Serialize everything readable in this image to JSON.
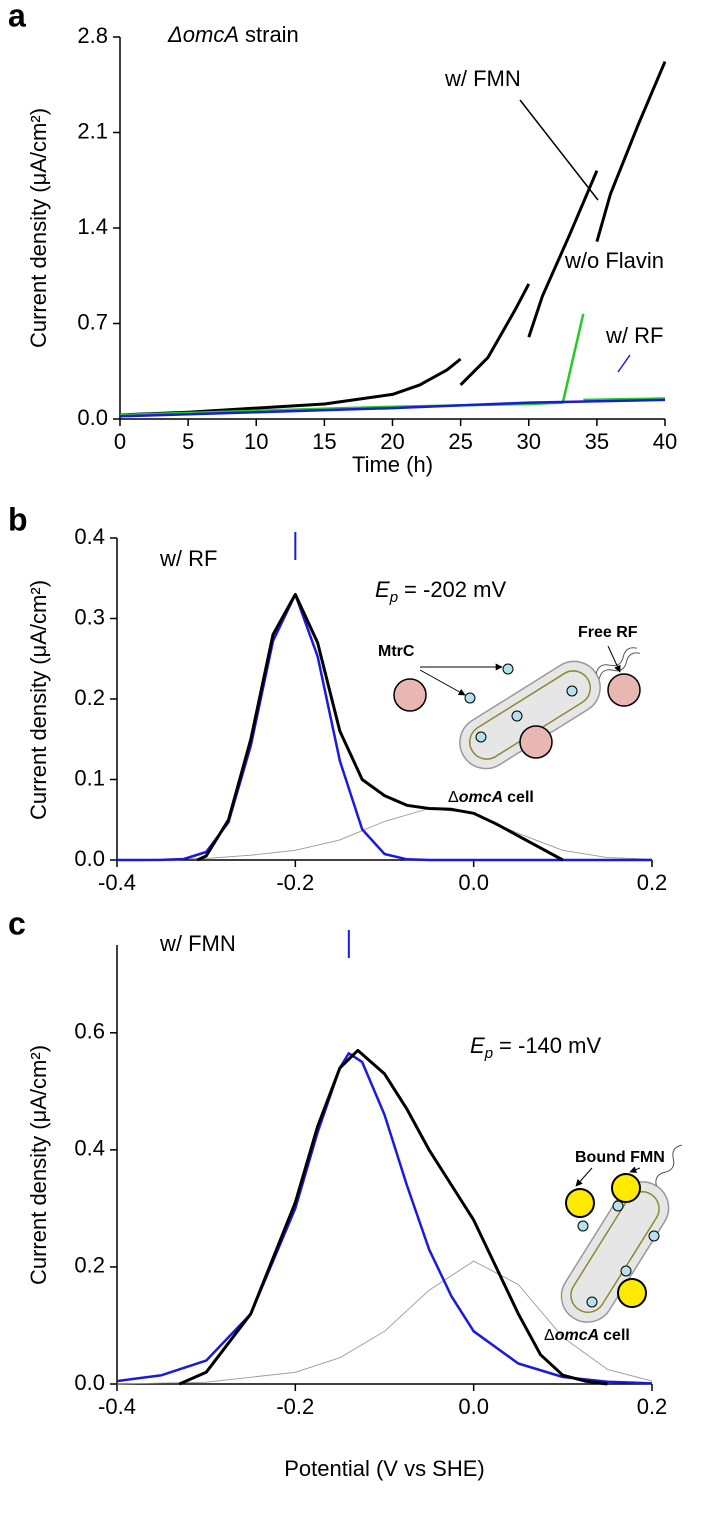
{
  "chart_data": [
    {
      "type": "line",
      "panel_label": "a",
      "strain_label": {
        "italic": "ΔomcA",
        "text": "strain"
      },
      "xlabel": "Time (h)",
      "ylabel": "Current density (μA/cm²)",
      "xlim": [
        0,
        40
      ],
      "xticks": [
        0,
        5,
        10,
        15,
        20,
        25,
        30,
        35,
        40
      ],
      "ylim": [
        0,
        2.8
      ],
      "yticks": [
        {
          "value": 0,
          "label": "0.0"
        },
        0.7,
        1.4,
        2.1,
        2.8
      ],
      "series": [
        {
          "name": "w/ FMN",
          "color": "#000000",
          "x": [
            0,
            5,
            10,
            15,
            20,
            22,
            24,
            25,
            null,
            25,
            27,
            29,
            30,
            null,
            30,
            31,
            33,
            35,
            null,
            35,
            36,
            38,
            40
          ],
          "values": [
            0.03,
            0.05,
            0.08,
            0.11,
            0.18,
            0.25,
            0.36,
            0.44,
            null,
            0.25,
            0.45,
            0.8,
            0.99,
            null,
            0.6,
            0.9,
            1.35,
            1.82,
            null,
            1.3,
            1.65,
            2.15,
            2.62
          ]
        },
        {
          "name": "w/o Flavin",
          "color": "#22cc22",
          "x": [
            0,
            10,
            20,
            30,
            32.5,
            34,
            null,
            34,
            40
          ],
          "values": [
            0.03,
            0.06,
            0.09,
            0.11,
            0.12,
            0.77,
            null,
            0.14,
            0.15
          ]
        },
        {
          "name": "w/ RF",
          "color": "#1a1adc",
          "x": [
            0,
            10,
            20,
            30,
            40
          ],
          "values": [
            0.02,
            0.05,
            0.08,
            0.12,
            0.14
          ]
        }
      ]
    },
    {
      "type": "line",
      "panel_label": "b",
      "condition": "w/ RF",
      "peak_label": {
        "symbol": "E",
        "subscript": "p",
        "text": "= -202 mV"
      },
      "inset": {
        "protein": "MtrC",
        "free": "Free RF",
        "cell": {
          "prefix": "Δ",
          "italic": "omcA",
          "text": "cell"
        }
      },
      "ylabel": "Current density (μA/cm²)",
      "xlim": [
        -0.4,
        0.2
      ],
      "xticks": [
        -0.4,
        -0.2,
        {
          "value": 0,
          "label": "0.0"
        },
        0.2
      ],
      "ylim": [
        0,
        0.4
      ],
      "yticks": [
        {
          "value": 0,
          "label": "0.0"
        },
        0.1,
        0.2,
        0.3,
        0.4
      ],
      "series": [
        {
          "color": "#999999",
          "x": [
            -0.4,
            -0.3,
            -0.25,
            -0.2,
            -0.15,
            -0.1,
            -0.05,
            0,
            0.05,
            0.1,
            0.15,
            0.2
          ],
          "values": [
            0,
            0.002,
            0.006,
            0.012,
            0.025,
            0.048,
            0.064,
            0.058,
            0.033,
            0.012,
            0.003,
            0.001
          ]
        },
        {
          "color": "#1a1adc",
          "x": [
            -0.4,
            -0.375,
            -0.35,
            -0.325,
            -0.3,
            -0.275,
            -0.25,
            -0.225,
            -0.2,
            -0.175,
            -0.15,
            -0.125,
            -0.1,
            -0.075,
            -0.05,
            0,
            0.1,
            0.2
          ],
          "values": [
            0,
            0,
            0.0001,
            0.0013,
            0.0099,
            0.047,
            0.142,
            0.272,
            0.33,
            0.253,
            0.123,
            0.038,
            0.0074,
            0.0009,
            0,
            0,
            0,
            0
          ]
        },
        {
          "color": "#000000",
          "x": [
            -0.31,
            -0.3,
            -0.275,
            -0.25,
            -0.225,
            -0.2,
            -0.175,
            -0.15,
            -0.125,
            -0.1,
            -0.075,
            -0.05,
            -0.025,
            0,
            0.025,
            0.05,
            0.075,
            0.1
          ],
          "values": [
            0,
            0.005,
            0.05,
            0.15,
            0.28,
            0.33,
            0.27,
            0.16,
            0.1,
            0.08,
            0.068,
            0.064,
            0.063,
            0.058,
            0.045,
            0.03,
            0.015,
            0
          ]
        }
      ]
    },
    {
      "type": "line",
      "panel_label": "c",
      "condition": "w/ FMN",
      "peak_label": {
        "symbol": "E",
        "subscript": "p",
        "text": "= -140 mV"
      },
      "inset": {
        "bound": "Bound FMN",
        "cell": {
          "prefix": "Δ",
          "italic": "omcA",
          "text": "cell"
        }
      },
      "xlabel": "Potential (V vs SHE)",
      "ylabel": "Current density (μA/cm²)",
      "xlim": [
        -0.4,
        0.2
      ],
      "xticks": [
        -0.4,
        -0.2,
        {
          "value": 0,
          "label": "0.0"
        },
        0.2
      ],
      "ylim": [
        0,
        0.75
      ],
      "yticks": [
        {
          "value": 0,
          "label": "0.0"
        },
        0.2,
        0.4,
        0.6
      ],
      "series": [
        {
          "color": "#999999",
          "x": [
            -0.4,
            -0.3,
            -0.2,
            -0.15,
            -0.1,
            -0.05,
            0,
            0.05,
            0.1,
            0.15,
            0.2
          ],
          "values": [
            0,
            0.003,
            0.02,
            0.045,
            0.09,
            0.16,
            0.21,
            0.17,
            0.08,
            0.025,
            0.005
          ]
        },
        {
          "color": "#1a1adc",
          "x": [
            -0.4,
            -0.35,
            -0.3,
            -0.25,
            -0.2,
            -0.175,
            -0.15,
            -0.14,
            -0.125,
            -0.1,
            -0.075,
            -0.05,
            -0.025,
            0,
            0.05,
            0.1,
            0.15,
            0.2
          ],
          "values": [
            0.005,
            0.015,
            0.04,
            0.12,
            0.3,
            0.43,
            0.54,
            0.565,
            0.55,
            0.46,
            0.34,
            0.23,
            0.15,
            0.09,
            0.035,
            0.012,
            0.004,
            0.001
          ]
        },
        {
          "color": "#000000",
          "x": [
            -0.33,
            -0.3,
            -0.25,
            -0.2,
            -0.175,
            -0.15,
            -0.13,
            -0.1,
            -0.075,
            -0.05,
            -0.025,
            0,
            0.025,
            0.05,
            0.075,
            0.1,
            0.125,
            0.15
          ],
          "values": [
            0,
            0.02,
            0.12,
            0.31,
            0.44,
            0.54,
            0.57,
            0.53,
            0.47,
            0.4,
            0.34,
            0.28,
            0.2,
            0.12,
            0.05,
            0.015,
            0.005,
            0
          ]
        }
      ]
    }
  ]
}
